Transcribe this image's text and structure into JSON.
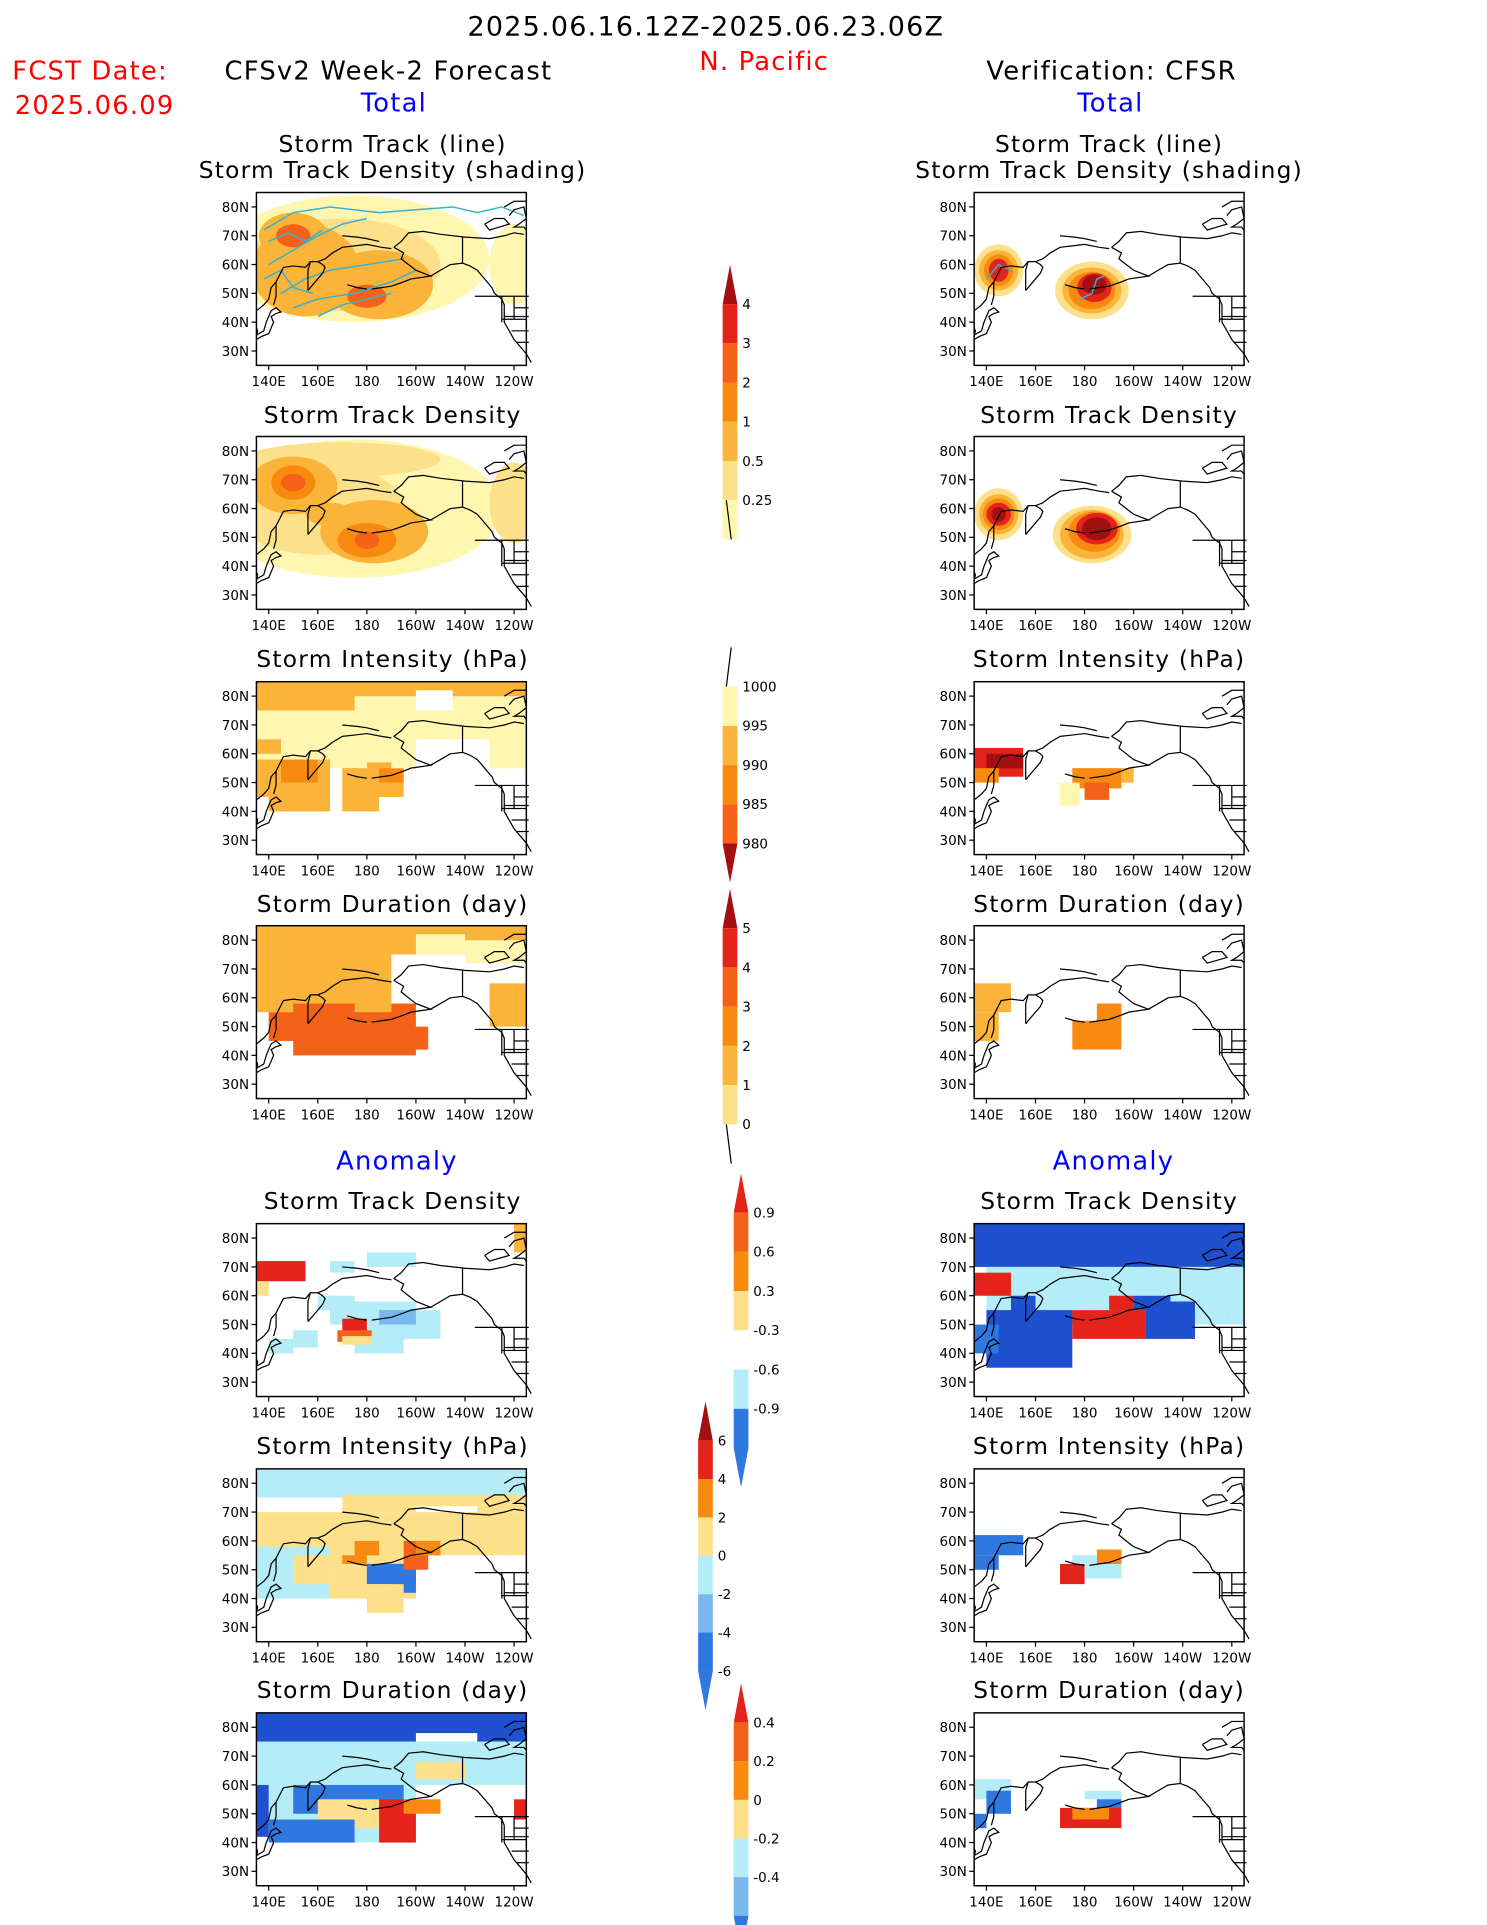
{
  "header": {
    "period": "2025.06.16.12Z-2025.06.23.06Z",
    "region": "N. Pacific",
    "fcst_label": "FCST Date:",
    "fcst_date": "2025.06.09",
    "left_title": "CFSv2 Week-2 Forecast",
    "right_title": "Verification: CFSR",
    "left_total": "Total",
    "right_total": "Total",
    "left_anomaly": "Anomaly",
    "right_anomaly": "Anomaly"
  },
  "colors": {
    "c_yellow1": "#fff7b0",
    "c_yellow2": "#fde08a",
    "c_yellow3": "#fbb43a",
    "c_orange": "#f98a10",
    "c_orange2": "#f4621a",
    "c_red": "#e4241a",
    "c_darkred": "#a41010",
    "c_lightblue": "#b4ecf8",
    "c_blue1": "#78b8ee",
    "c_blue2": "#2e78e0",
    "c_blue3": "#1e50d0",
    "c_track": "#3ab0d0"
  },
  "panels": [
    {
      "id": "fc_track",
      "title1": "Storm Track (line)",
      "title2": "Storm Track Density (shading)"
    },
    {
      "id": "ob_track",
      "title1": "Storm Track (line)",
      "title2": "Storm Track Density (shading)"
    },
    {
      "id": "fc_density",
      "title1": "Storm Track Density"
    },
    {
      "id": "ob_density",
      "title1": "Storm Track Density"
    },
    {
      "id": "fc_intensity",
      "title1": "Storm Intensity (hPa)"
    },
    {
      "id": "ob_intensity",
      "title1": "Storm Intensity (hPa)"
    },
    {
      "id": "fc_duration",
      "title1": "Storm Duration (day)"
    },
    {
      "id": "ob_duration",
      "title1": "Storm Duration (day)"
    },
    {
      "id": "fc_anom_density",
      "title1": "Storm Track Density"
    },
    {
      "id": "ob_anom_density",
      "title1": "Storm Track Density"
    },
    {
      "id": "fc_anom_intensity",
      "title1": "Storm Intensity (hPa)"
    },
    {
      "id": "ob_anom_intensity",
      "title1": "Storm Intensity (hPa)"
    },
    {
      "id": "fc_anom_duration",
      "title1": "Storm Duration (day)"
    },
    {
      "id": "ob_anom_duration",
      "title1": "Storm Duration (day)"
    }
  ],
  "chart_data": {
    "type": "heatmap",
    "x_ticks": [
      "140E",
      "160E",
      "180",
      "160W",
      "140W",
      "120W"
    ],
    "y_ticks": [
      "80N",
      "70N",
      "60N",
      "50N",
      "40N",
      "30N"
    ],
    "xlim": [
      "135E",
      "115W"
    ],
    "ylim": [
      "25N",
      "85N"
    ],
    "colorbars": [
      {
        "name": "density",
        "labels": [
          "0.25",
          "0.5",
          "1",
          "2",
          "3",
          "4"
        ]
      },
      {
        "name": "intensity",
        "labels": [
          "1000",
          "995",
          "990",
          "985",
          "980"
        ]
      },
      {
        "name": "duration",
        "labels": [
          "0",
          "1",
          "2",
          "3",
          "4",
          "5"
        ]
      },
      {
        "name": "density_anom",
        "labels": [
          "0.9",
          "0.6",
          "0.3",
          "-0.3",
          "-0.6",
          "-0.9"
        ]
      },
      {
        "name": "intensity_anom",
        "labels": [
          "6",
          "4",
          "2",
          "0",
          "-2",
          "-4",
          "-6"
        ]
      },
      {
        "name": "duration_anom",
        "labels": [
          "0.4",
          "0.2",
          "0",
          "-0.2",
          "-0.4"
        ]
      }
    ]
  }
}
